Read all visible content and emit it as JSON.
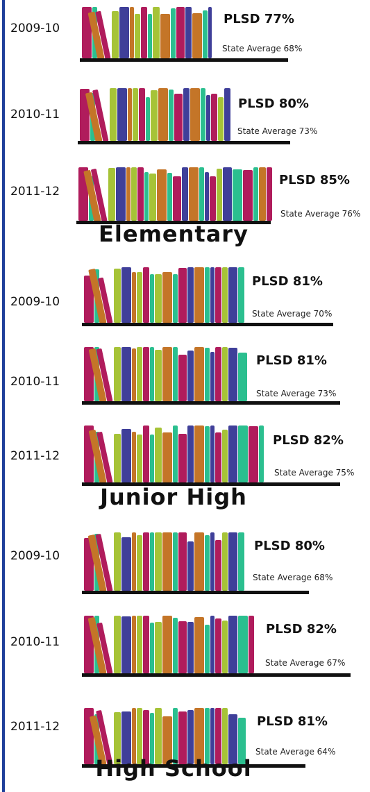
{
  "groups": [
    {
      "label": "Elementary",
      "rows": [
        {
          "year": "2009-10",
          "district": "PLSD 77%",
          "state": "State Average 68%"
        },
        {
          "year": "2010-11",
          "district": "PLSD 80%",
          "state": "State Average 73%"
        },
        {
          "year": "2011-12",
          "district": "PLSD 85%",
          "state": "State Average 76%"
        }
      ]
    },
    {
      "label": "Junior High",
      "rows": [
        {
          "year": "2009-10",
          "district": "PLSD 81%",
          "state": "State Average 70%"
        },
        {
          "year": "2010-11",
          "district": "PLSD 81%",
          "state": "State Average 73%"
        },
        {
          "year": "2011-12",
          "district": "PLSD 82%",
          "state": "State Average 75%"
        }
      ]
    },
    {
      "label": "High School",
      "rows": [
        {
          "year": "2009-10",
          "district": "PLSD 80%",
          "state": "State Average 68%"
        },
        {
          "year": "2010-11",
          "district": "PLSD 82%",
          "state": "State Average 67%"
        },
        {
          "year": "2011-12",
          "district": "PLSD 81%",
          "state": "State Average 64%"
        }
      ]
    }
  ]
}
